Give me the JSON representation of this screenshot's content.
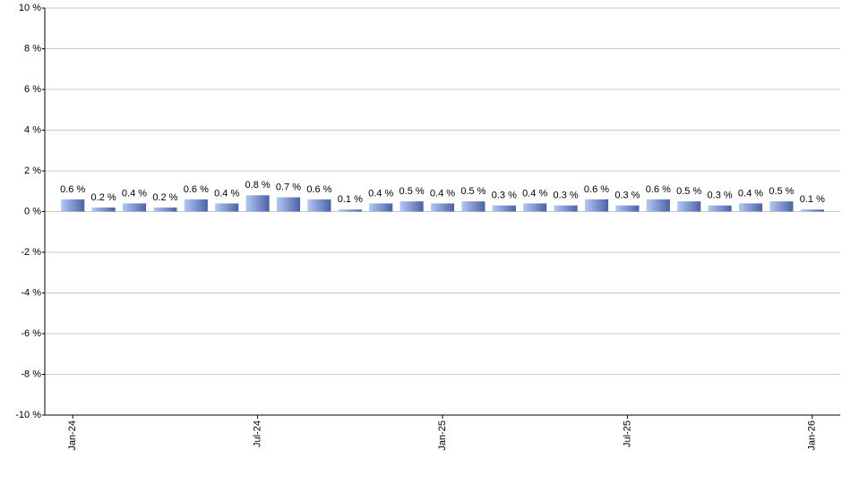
{
  "chart_data": {
    "type": "bar",
    "categories": [
      "Jan-24",
      null,
      null,
      null,
      null,
      null,
      "Jul-24",
      null,
      null,
      null,
      null,
      null,
      "Jan-25",
      null,
      null,
      null,
      null,
      null,
      "Jul-25",
      null,
      null,
      null,
      null,
      null,
      "Jan-26"
    ],
    "values": [
      0.6,
      0.2,
      0.4,
      0.2,
      0.6,
      0.4,
      0.8,
      0.7,
      0.6,
      0.1,
      0.4,
      0.5,
      0.4,
      0.5,
      0.3,
      0.4,
      0.3,
      0.6,
      0.3,
      0.6,
      0.5,
      0.3,
      0.4,
      0.5,
      0.1
    ],
    "value_labels": [
      "0.6 %",
      "0.2 %",
      "0.4 %",
      "0.2 %",
      "0.6 %",
      "0.4 %",
      "0.8 %",
      "0.7 %",
      "0.6 %",
      "0.1 %",
      "0.4 %",
      "0.5 %",
      "0.4 %",
      "0.5 %",
      "0.3 %",
      "0.4 %",
      "0.3 %",
      "0.6 %",
      "0.3 %",
      "0.6 %",
      "0.5 %",
      "0.3 %",
      "0.4 %",
      "0.5 %",
      "0.1 %"
    ],
    "color": "#6f8ad0",
    "ylim": [
      -10,
      10
    ],
    "yticks": [
      {
        "value": -10,
        "label": "-10 %"
      },
      {
        "value": -8,
        "label": "-8 %"
      },
      {
        "value": -6,
        "label": "-6 %"
      },
      {
        "value": -4,
        "label": "-4 %"
      },
      {
        "value": -2,
        "label": "-2 %"
      },
      {
        "value": 0,
        "label": "0 %"
      },
      {
        "value": 2,
        "label": "2 %"
      },
      {
        "value": 4,
        "label": "4 %"
      },
      {
        "value": 6,
        "label": "6 %"
      },
      {
        "value": 8,
        "label": "8 %"
      },
      {
        "value": 10,
        "label": "10 %"
      }
    ],
    "grid": true
  }
}
